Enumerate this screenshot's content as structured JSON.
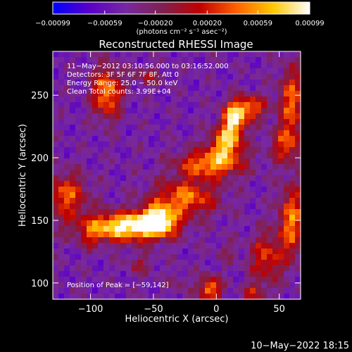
{
  "chart_data": {
    "type": "heatmap",
    "title": "Reconstructed RHESSI Image",
    "xlabel": "Heliocentric X (arcsec)",
    "ylabel": "Heliocentric Y (arcsec)",
    "xlim": [
      -130,
      67
    ],
    "ylim": [
      87,
      285
    ],
    "x_ticks": [
      -100,
      -50,
      0,
      50
    ],
    "x_tick_labels": [
      "−100",
      "−50",
      "0",
      "50"
    ],
    "y_ticks": [
      100,
      150,
      200,
      250
    ],
    "y_tick_labels": [
      "100",
      "150",
      "200",
      "250"
    ],
    "colorbar": {
      "range": [
        -0.00099,
        0.00099
      ],
      "ticks": [
        -0.00099,
        -0.00059,
        -0.0002,
        0.0002,
        0.00059,
        0.00099
      ],
      "tick_labels": [
        "−0.00099",
        "−0.00059",
        "−0.00020",
        "0.00020",
        "0.00059",
        "0.00099"
      ],
      "units": "(photons cm⁻² s⁻¹ asec⁻²)",
      "colormap": [
        "#0000ff",
        "#5a00c8",
        "#7828a0",
        "#802050",
        "#c00000",
        "#ff6000",
        "#ffc800",
        "#ffffff"
      ]
    },
    "annotations": [
      "11−May−2012 03:10:56.000 to 03:16:52.000",
      "Detectors: 3F 5F 6F 7F 8F, Att 0",
      "Energy Range: 25.0 − 50.0 keV",
      "Clean     Total counts: 3.99E+04"
    ],
    "peak_label": "Position of Peak = [−59,142]",
    "peak_position": [
      -59,
      142
    ],
    "emission_features": [
      {
        "x": -73,
        "y": 145,
        "sx": 24,
        "sy": 8,
        "peak": 1.0
      },
      {
        "x": -47,
        "y": 150,
        "sx": 10,
        "sy": 8,
        "peak": 0.95
      },
      {
        "x": -25,
        "y": 168,
        "sx": 18,
        "sy": 10,
        "peak": 0.75
      },
      {
        "x": -5,
        "y": 195,
        "sx": 18,
        "sy": 8,
        "peak": 0.8
      },
      {
        "x": 8,
        "y": 212,
        "sx": 9,
        "sy": 9,
        "peak": 0.85
      },
      {
        "x": 14,
        "y": 230,
        "sx": 6,
        "sy": 8,
        "peak": 0.9
      },
      {
        "x": 25,
        "y": 240,
        "sx": 10,
        "sy": 7,
        "peak": 0.75
      },
      {
        "x": -120,
        "y": 170,
        "sx": 12,
        "sy": 12,
        "peak": 0.7
      },
      {
        "x": -87,
        "y": 252,
        "sx": 8,
        "sy": 14,
        "peak": 0.8
      },
      {
        "x": 40,
        "y": 120,
        "sx": 9,
        "sy": 14,
        "peak": 0.65
      },
      {
        "x": 60,
        "y": 150,
        "sx": 7,
        "sy": 20,
        "peak": 0.75
      },
      {
        "x": 60,
        "y": 245,
        "sx": 7,
        "sy": 20,
        "peak": 0.7
      },
      {
        "x": 55,
        "y": 210,
        "sx": 9,
        "sy": 10,
        "peak": 0.6
      },
      {
        "x": -5,
        "y": 95,
        "sx": 6,
        "sy": 7,
        "peak": 0.8
      },
      {
        "x": 30,
        "y": 92,
        "sx": 6,
        "sy": 5,
        "peak": 0.55
      },
      {
        "x": -60,
        "y": 115,
        "sx": 8,
        "sy": 6,
        "peak": 0.45
      },
      {
        "x": -30,
        "y": 100,
        "sx": 6,
        "sy": 6,
        "peak": 0.4
      },
      {
        "x": -100,
        "y": 135,
        "sx": 6,
        "sy": 6,
        "peak": 0.45
      },
      {
        "x": -55,
        "y": 265,
        "sx": 8,
        "sy": 5,
        "peak": 0.5
      },
      {
        "x": 8,
        "y": 125,
        "sx": 6,
        "sy": 6,
        "peak": 0.4
      }
    ]
  },
  "footer_timestamp": "10−May−2022 18:15"
}
